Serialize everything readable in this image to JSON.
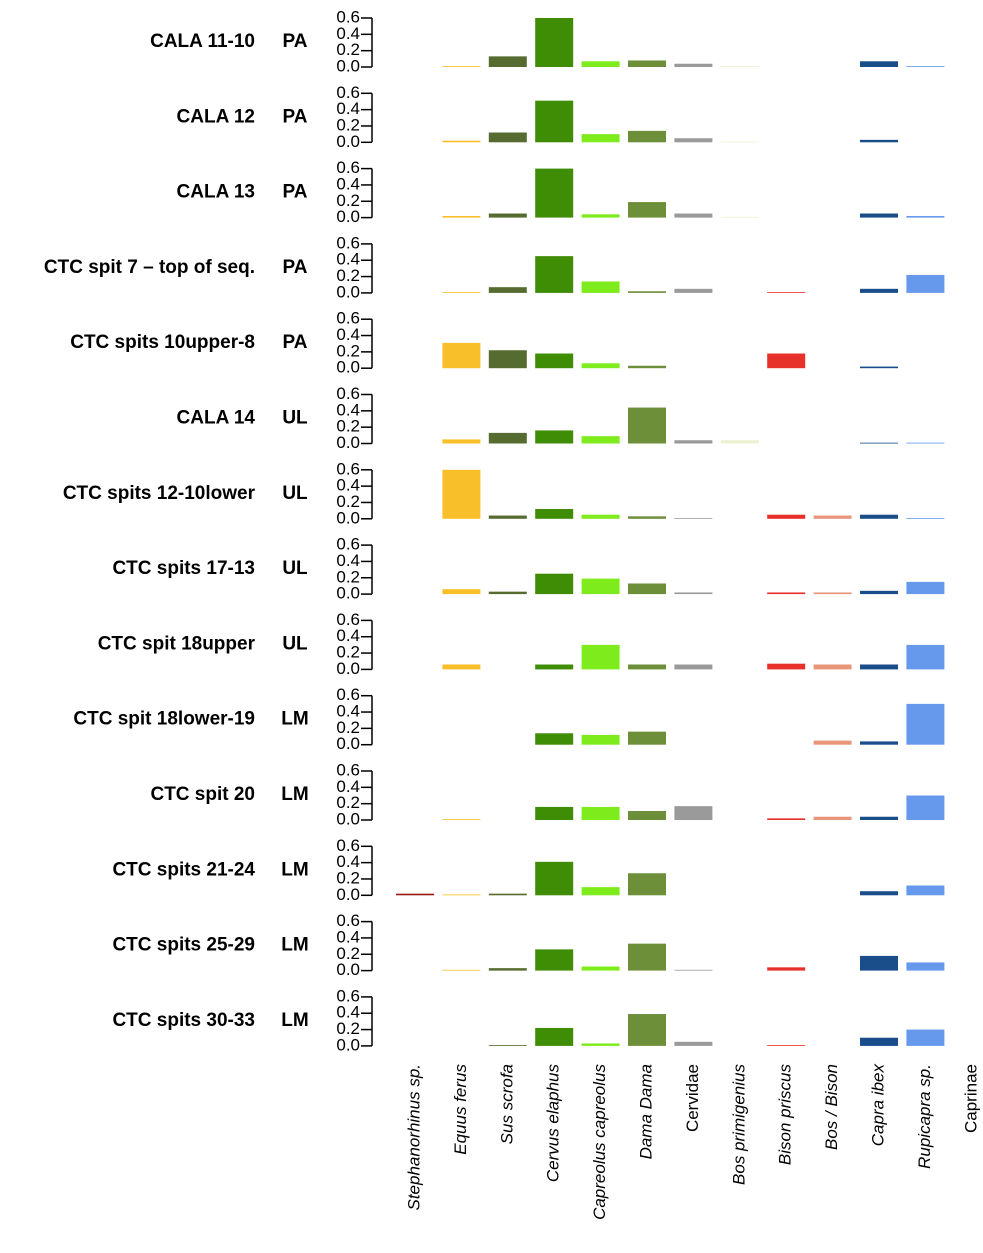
{
  "chart_data": {
    "type": "bar",
    "categories": [
      "Stephanorhinus sp.",
      "Equus ferus",
      "Sus scrofa",
      "Cervus elaphus",
      "Capreolus capreolus",
      "Dama Dama",
      "Cervidae",
      "Bos primigenius",
      "Bison priscus",
      "Bos / Bison",
      "Capra ibex",
      "Rupicapra sp.",
      "Caprinae"
    ],
    "colors": [
      "#9b1b1b",
      "#f9bf2a",
      "#566b2f",
      "#3f8c05",
      "#7eec1c",
      "#6d8f3a",
      "#9a9a9a",
      "#eef0d2",
      "#e8302a",
      "#e8957a",
      "#1a4e8a",
      "#6699ec",
      "#888888"
    ],
    "ylim": [
      0,
      0.6
    ],
    "yticks": [
      {
        "value": 0,
        "label": "0.0"
      },
      0.2,
      0.4,
      0.6
    ],
    "series": [
      {
        "name": "CALA 11-10",
        "period": "PA",
        "values": [
          null,
          0.01,
          0.13,
          0.6,
          0.07,
          0.08,
          0.04,
          0.01,
          null,
          null,
          0.07,
          0.01,
          null
        ]
      },
      {
        "name": "CALA 12",
        "period": "PA",
        "values": [
          null,
          0.02,
          0.12,
          0.51,
          0.1,
          0.14,
          0.05,
          0.01,
          null,
          null,
          0.03,
          null,
          null
        ]
      },
      {
        "name": "CALA 13",
        "period": "PA",
        "values": [
          null,
          0.02,
          0.05,
          0.6,
          0.04,
          0.19,
          0.05,
          0.01,
          null,
          null,
          0.05,
          0.02,
          null
        ]
      },
      {
        "name": "CTC spit 7 – top of seq.",
        "period": "PA",
        "values": [
          null,
          0.01,
          0.07,
          0.45,
          0.14,
          0.02,
          0.05,
          null,
          0.01,
          null,
          0.05,
          0.22,
          null
        ]
      },
      {
        "name": "CTC  spits 10upper-8",
        "period": "PA",
        "values": [
          null,
          0.31,
          0.22,
          0.18,
          0.06,
          0.03,
          null,
          null,
          0.18,
          null,
          0.02,
          null,
          null
        ]
      },
      {
        "name": "CALA 14",
        "period": "UL",
        "values": [
          null,
          0.05,
          0.13,
          0.16,
          0.09,
          0.44,
          0.04,
          0.04,
          null,
          null,
          0.01,
          0.01,
          null
        ]
      },
      {
        "name": "CTC spits 12-10lower",
        "period": "UL",
        "values": [
          null,
          0.6,
          0.04,
          0.12,
          0.05,
          0.03,
          0.01,
          null,
          0.05,
          0.04,
          0.05,
          0.01,
          null
        ]
      },
      {
        "name": "CTC spits 17-13",
        "period": "UL",
        "values": [
          null,
          0.06,
          0.03,
          0.25,
          0.19,
          0.13,
          0.02,
          null,
          0.02,
          0.02,
          0.04,
          0.15,
          null
        ]
      },
      {
        "name": "CTC spit 18upper",
        "period": "UL",
        "values": [
          null,
          0.06,
          null,
          0.06,
          0.3,
          0.06,
          0.06,
          null,
          0.07,
          0.06,
          0.06,
          0.3,
          null
        ]
      },
      {
        "name": "CTC spit 18lower-19",
        "period": "LM",
        "values": [
          null,
          null,
          null,
          0.14,
          0.12,
          0.16,
          null,
          null,
          null,
          0.05,
          0.04,
          0.5,
          null
        ]
      },
      {
        "name": "CTC spit 20",
        "period": "LM",
        "values": [
          null,
          0.01,
          null,
          0.16,
          0.16,
          0.11,
          0.17,
          null,
          0.02,
          0.04,
          0.04,
          0.3,
          null
        ]
      },
      {
        "name": "CTC spits 21-24",
        "period": "LM",
        "values": [
          0.02,
          0.01,
          0.02,
          0.41,
          0.1,
          0.27,
          null,
          null,
          null,
          null,
          0.05,
          0.12,
          null
        ]
      },
      {
        "name": "CTC spits 25-29",
        "period": "LM",
        "values": [
          null,
          0.01,
          0.03,
          0.26,
          0.05,
          0.33,
          0.01,
          null,
          0.04,
          null,
          0.18,
          0.1,
          null
        ]
      },
      {
        "name": "CTC spits 30-33",
        "period": "LM",
        "values": [
          null,
          null,
          0.01,
          0.22,
          0.03,
          0.39,
          0.05,
          null,
          0.01,
          null,
          0.1,
          0.2,
          null
        ]
      }
    ]
  }
}
